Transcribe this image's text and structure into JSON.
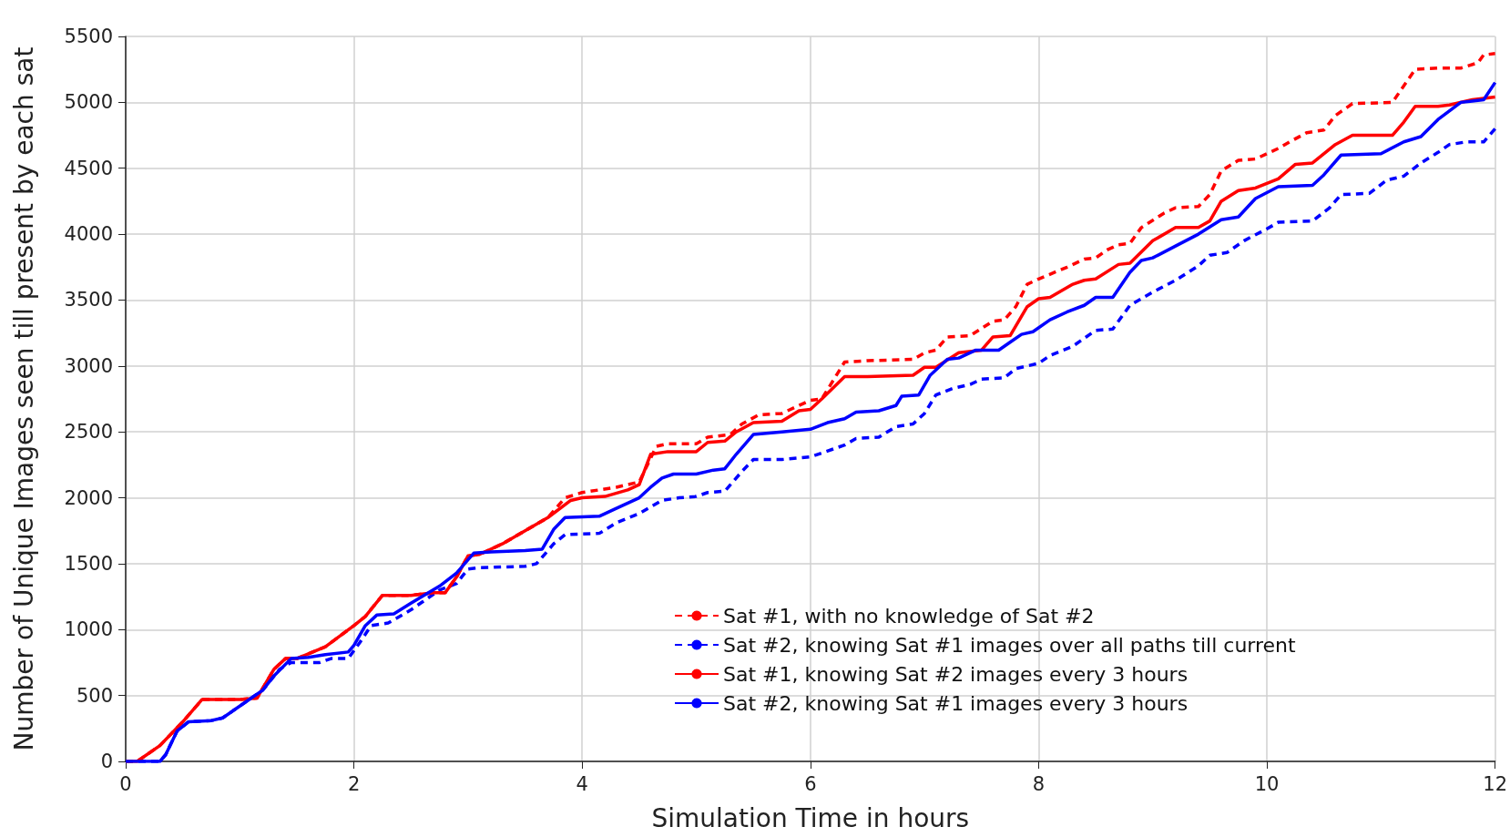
{
  "chart_data": {
    "type": "line",
    "xlabel": "Simulation Time in hours",
    "ylabel": "Number of Unique Images seen till present by each sat",
    "xlim": [
      0,
      12
    ],
    "xticks": [
      0,
      2,
      4,
      6,
      8,
      10,
      12
    ],
    "ylim": [
      0,
      5500
    ],
    "yticks": [
      0,
      500,
      1000,
      1500,
      2000,
      2500,
      3000,
      3500,
      4000,
      4500,
      5000,
      5500
    ],
    "grid": true,
    "legend": "bottom right",
    "marker": "none",
    "series": [
      {
        "name": "Sat #1, with no knowledge of Sat #2",
        "color": "#ff0000",
        "line_style": "dashed",
        "x": [
          0,
          0.1,
          0.3,
          0.5,
          0.67,
          1.0,
          1.15,
          1.3,
          1.4,
          1.5,
          1.75,
          2.0,
          2.1,
          2.25,
          2.5,
          2.7,
          2.8,
          2.9,
          3.0,
          3.1,
          3.3,
          3.5,
          3.7,
          3.85,
          4.0,
          4.3,
          4.5,
          4.65,
          4.75,
          5.0,
          5.1,
          5.3,
          5.4,
          5.55,
          5.75,
          5.9,
          6.0,
          6.1,
          6.3,
          6.5,
          6.9,
          7.0,
          7.1,
          7.2,
          7.4,
          7.6,
          7.7,
          7.8,
          7.9,
          8.0,
          8.25,
          8.4,
          8.5,
          8.6,
          8.7,
          8.8,
          8.9,
          9.1,
          9.2,
          9.4,
          9.5,
          9.6,
          9.75,
          9.9,
          10.1,
          10.2,
          10.35,
          10.5,
          10.6,
          10.75,
          11.1,
          11.3,
          11.5,
          11.7,
          11.85,
          11.9,
          12
        ],
        "values": [
          0,
          0,
          120,
          300,
          470,
          470,
          480,
          700,
          780,
          780,
          870,
          1030,
          1100,
          1260,
          1260,
          1280,
          1280,
          1400,
          1560,
          1570,
          1650,
          1750,
          1850,
          2000,
          2040,
          2080,
          2120,
          2390,
          2410,
          2410,
          2460,
          2480,
          2560,
          2630,
          2640,
          2700,
          2740,
          2750,
          3030,
          3040,
          3050,
          3100,
          3120,
          3220,
          3230,
          3340,
          3350,
          3450,
          3620,
          3660,
          3750,
          3810,
          3820,
          3880,
          3920,
          3930,
          4050,
          4160,
          4200,
          4210,
          4300,
          4480,
          4560,
          4570,
          4650,
          4700,
          4770,
          4790,
          4900,
          4990,
          5000,
          5250,
          5260,
          5260,
          5300,
          5360,
          5370
        ]
      },
      {
        "name": "Sat #2, knowing Sat #1 images over all paths till current",
        "color": "#0000ff",
        "line_style": "dashed",
        "x": [
          0,
          0.3,
          0.35,
          0.45,
          0.55,
          0.75,
          0.85,
          1.0,
          1.2,
          1.35,
          1.45,
          1.7,
          1.8,
          1.95,
          2.05,
          2.15,
          2.3,
          2.5,
          2.75,
          2.9,
          3.0,
          3.1,
          3.5,
          3.6,
          3.75,
          3.85,
          4.15,
          4.3,
          4.5,
          4.7,
          4.85,
          5.0,
          5.1,
          5.25,
          5.4,
          5.5,
          5.75,
          6.0,
          6.2,
          6.3,
          6.4,
          6.6,
          6.75,
          6.9,
          7.0,
          7.1,
          7.25,
          7.4,
          7.5,
          7.7,
          7.8,
          7.9,
          8.0,
          8.1,
          8.3,
          8.4,
          8.5,
          8.65,
          8.8,
          9.0,
          9.2,
          9.4,
          9.5,
          9.65,
          9.8,
          10.0,
          10.1,
          10.4,
          10.55,
          10.65,
          10.9,
          11.05,
          11.2,
          11.35,
          11.5,
          11.6,
          11.75,
          11.9,
          12
        ],
        "values": [
          0,
          0,
          50,
          230,
          300,
          310,
          330,
          420,
          540,
          700,
          750,
          750,
          780,
          780,
          900,
          1030,
          1050,
          1150,
          1300,
          1350,
          1460,
          1470,
          1480,
          1500,
          1650,
          1720,
          1730,
          1810,
          1880,
          1980,
          2000,
          2010,
          2040,
          2050,
          2200,
          2290,
          2290,
          2310,
          2370,
          2400,
          2450,
          2460,
          2540,
          2560,
          2640,
          2780,
          2830,
          2860,
          2900,
          2910,
          2980,
          3000,
          3020,
          3080,
          3150,
          3210,
          3270,
          3280,
          3460,
          3560,
          3650,
          3760,
          3840,
          3860,
          3950,
          4040,
          4090,
          4100,
          4200,
          4300,
          4310,
          4410,
          4440,
          4540,
          4620,
          4680,
          4700,
          4700,
          4800
        ]
      },
      {
        "name": "Sat #1, knowing Sat #2 images every 3 hours",
        "color": "#ff0000",
        "line_style": "solid",
        "x": [
          0,
          0.1,
          0.3,
          0.5,
          0.67,
          1.0,
          1.15,
          1.3,
          1.4,
          1.5,
          1.75,
          2.0,
          2.1,
          2.25,
          2.5,
          2.7,
          2.8,
          2.9,
          3.0,
          3.1,
          3.3,
          3.5,
          3.7,
          3.9,
          4.0,
          4.2,
          4.4,
          4.5,
          4.6,
          4.75,
          5.0,
          5.1,
          5.25,
          5.35,
          5.5,
          5.75,
          5.9,
          6.0,
          6.1,
          6.3,
          6.5,
          6.9,
          7.0,
          7.1,
          7.3,
          7.5,
          7.6,
          7.75,
          7.9,
          8.0,
          8.1,
          8.3,
          8.4,
          8.5,
          8.7,
          8.8,
          9.0,
          9.2,
          9.4,
          9.5,
          9.6,
          9.75,
          9.9,
          10.1,
          10.25,
          10.4,
          10.6,
          10.75,
          11.1,
          11.2,
          11.3,
          11.5,
          11.6,
          11.8,
          12
        ],
        "values": [
          0,
          0,
          120,
          300,
          470,
          470,
          480,
          700,
          780,
          780,
          870,
          1030,
          1100,
          1260,
          1260,
          1280,
          1280,
          1400,
          1560,
          1570,
          1650,
          1750,
          1850,
          1980,
          2000,
          2010,
          2060,
          2100,
          2330,
          2350,
          2350,
          2420,
          2430,
          2500,
          2570,
          2580,
          2660,
          2670,
          2750,
          2920,
          2920,
          2930,
          2990,
          2990,
          3100,
          3120,
          3220,
          3230,
          3450,
          3510,
          3520,
          3620,
          3650,
          3660,
          3770,
          3780,
          3950,
          4050,
          4050,
          4100,
          4250,
          4330,
          4350,
          4420,
          4530,
          4540,
          4680,
          4750,
          4750,
          4850,
          4970,
          4970,
          4980,
          5020,
          5040
        ]
      },
      {
        "name": "Sat #2, knowing Sat #1 images every 3 hours",
        "color": "#0000ff",
        "line_style": "solid",
        "x": [
          0,
          0.3,
          0.35,
          0.45,
          0.55,
          0.75,
          0.85,
          1.0,
          1.2,
          1.3,
          1.45,
          1.6,
          1.75,
          1.95,
          2.0,
          2.1,
          2.2,
          2.35,
          2.5,
          2.75,
          2.9,
          3.05,
          3.2,
          3.5,
          3.65,
          3.75,
          3.85,
          4.15,
          4.3,
          4.5,
          4.6,
          4.7,
          4.8,
          5.0,
          5.15,
          5.25,
          5.35,
          5.5,
          5.75,
          6.0,
          6.15,
          6.3,
          6.4,
          6.6,
          6.75,
          6.8,
          6.95,
          7.05,
          7.2,
          7.3,
          7.45,
          7.65,
          7.75,
          7.85,
          7.95,
          8.1,
          8.25,
          8.4,
          8.5,
          8.65,
          8.8,
          8.9,
          9.0,
          9.2,
          9.4,
          9.6,
          9.75,
          9.9,
          10.1,
          10.4,
          10.5,
          10.65,
          11.0,
          11.2,
          11.35,
          11.5,
          11.7,
          11.8,
          11.9,
          12
        ],
        "values": [
          0,
          0,
          50,
          230,
          300,
          310,
          330,
          420,
          540,
          650,
          780,
          790,
          810,
          830,
          880,
          1030,
          1110,
          1120,
          1200,
          1330,
          1430,
          1580,
          1590,
          1600,
          1610,
          1760,
          1850,
          1860,
          1920,
          2000,
          2080,
          2150,
          2180,
          2180,
          2210,
          2220,
          2330,
          2480,
          2500,
          2520,
          2570,
          2600,
          2650,
          2660,
          2700,
          2770,
          2780,
          2930,
          3050,
          3060,
          3120,
          3120,
          3180,
          3240,
          3260,
          3350,
          3410,
          3460,
          3520,
          3520,
          3710,
          3800,
          3820,
          3910,
          4000,
          4110,
          4130,
          4270,
          4360,
          4370,
          4450,
          4600,
          4610,
          4700,
          4740,
          4870,
          5000,
          5010,
          5020,
          5150
        ]
      }
    ]
  }
}
